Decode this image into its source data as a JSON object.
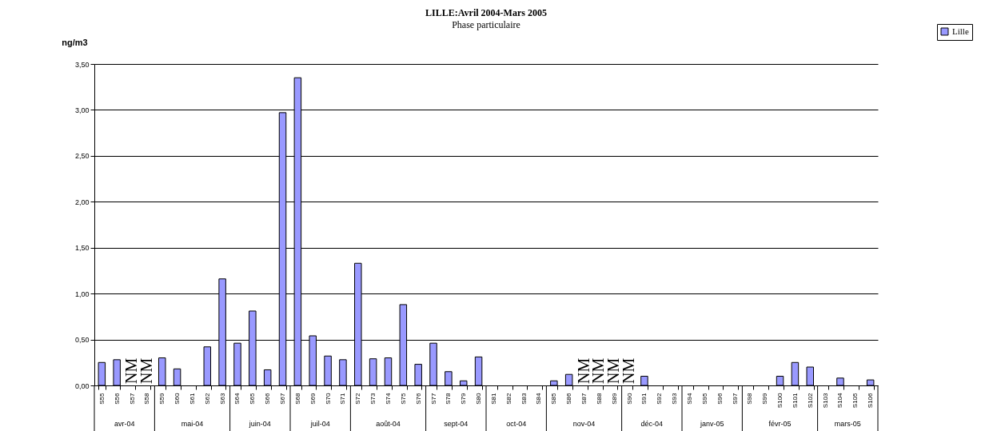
{
  "chart_data": {
    "type": "bar",
    "title": "LILLE:Avril 2004-Mars 2005",
    "subtitle": "Phase particulaire",
    "ylabel": "ng/m3",
    "categories": [
      "S55",
      "S56",
      "S57",
      "S58",
      "S59",
      "S60",
      "S61",
      "S62",
      "S63",
      "S64",
      "S65",
      "S66",
      "S67",
      "S68",
      "S69",
      "S70",
      "S71",
      "S72",
      "S73",
      "S74",
      "S75",
      "S76",
      "S77",
      "S78",
      "S79",
      "S80",
      "S81",
      "S82",
      "S83",
      "S84",
      "S85",
      "S86",
      "S87",
      "S88",
      "S89",
      "S90",
      "S91",
      "S92",
      "S93",
      "S94",
      "S95",
      "S96",
      "S97",
      "S98",
      "S99",
      "S100",
      "S101",
      "S102",
      "S103",
      "S104",
      "S105",
      "S106"
    ],
    "series": [
      {
        "name": "Lille",
        "color": "#9999ff",
        "values": [
          0.25,
          0.28,
          null,
          null,
          0.3,
          0.18,
          0,
          0.42,
          1.16,
          0.46,
          0.81,
          0.17,
          2.97,
          3.35,
          0.54,
          0.32,
          0.28,
          1.33,
          0.29,
          0.3,
          0.88,
          0.23,
          0.46,
          0.15,
          0.05,
          0.31,
          0,
          0,
          0,
          0,
          0.05,
          0.12,
          null,
          null,
          null,
          null,
          0.1,
          0,
          0,
          0,
          0,
          0,
          0,
          0,
          0,
          0.1,
          0.25,
          0.2,
          0,
          0.08,
          0,
          0.06
        ],
        "value_labels": [
          null,
          null,
          "NM",
          "NM",
          null,
          null,
          null,
          null,
          null,
          null,
          null,
          null,
          null,
          null,
          null,
          null,
          null,
          null,
          null,
          null,
          null,
          null,
          null,
          null,
          null,
          null,
          null,
          null,
          null,
          null,
          null,
          null,
          "NM",
          "NM",
          "NM",
          "NM",
          null,
          null,
          null,
          null,
          null,
          null,
          null,
          null,
          null,
          null,
          null,
          null,
          null,
          null,
          null,
          null
        ]
      }
    ],
    "ylim": [
      0,
      3.5
    ],
    "yticks": [
      {
        "value": 0,
        "label": "0,00"
      },
      {
        "value": 0.5,
        "label": "0,50"
      },
      {
        "value": 1,
        "label": "1,00"
      },
      {
        "value": 1.5,
        "label": "1,50"
      },
      {
        "value": 2,
        "label": "2,00"
      },
      {
        "value": 2.5,
        "label": "2,50"
      },
      {
        "value": 3,
        "label": "3,00"
      },
      {
        "value": 3.5,
        "label": "3,50"
      }
    ],
    "grid": "y",
    "legend": "top right",
    "annotations": [
      "avr-04",
      "mai-04",
      "juin-04",
      "juil-04",
      "août-04",
      "sept-04",
      "oct-04",
      "nov-04",
      "déc-04",
      "janv-05",
      "févr-05",
      "mars-05"
    ]
  }
}
